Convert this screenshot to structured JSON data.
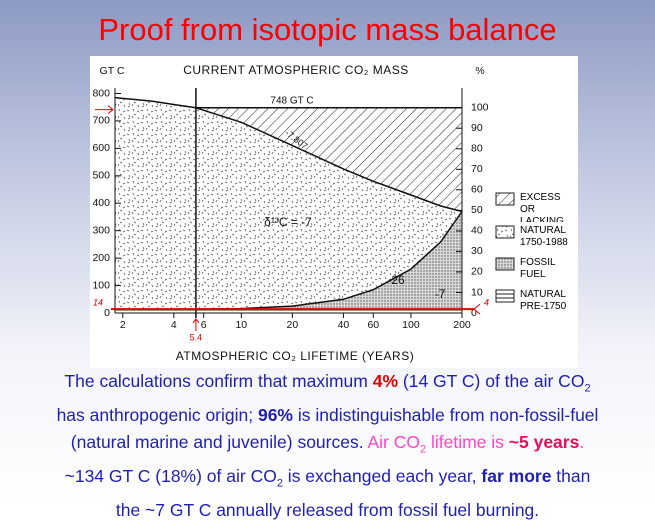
{
  "title": "Proof from isotopic mass balance",
  "chart_data": {
    "type": "area",
    "title": "CURRENT ATMOSPHERIC CO₂ MASS",
    "y_label": "GT C",
    "y2_label": "%",
    "x_label": "ATMOSPHERIC CO₂ LIFETIME (YEARS)",
    "log_x": true,
    "xlim": [
      1.8,
      200
    ],
    "xticks": [
      2,
      4,
      6,
      10,
      20,
      40,
      60,
      100,
      200
    ],
    "ylim": [
      0,
      820
    ],
    "yticks": [
      0,
      100,
      200,
      300,
      400,
      500,
      600,
      700,
      800
    ],
    "y2lim": [
      0,
      109.6
    ],
    "y2ticks": [
      0,
      10,
      20,
      30,
      40,
      50,
      60,
      70,
      80,
      90,
      100
    ],
    "curves": [
      {
        "x": [
          1.8,
          3,
          4,
          5.4,
          200
        ],
        "values": [
          785,
          772,
          760,
          748,
          748
        ]
      },
      {
        "x": [
          5.4,
          10,
          20,
          40,
          60,
          100,
          150,
          200
        ],
        "values": [
          748,
          695,
          610,
          525,
          480,
          430,
          390,
          370
        ]
      },
      {
        "x": [
          1.8,
          5.4,
          10,
          20,
          40,
          60,
          100,
          150,
          200
        ],
        "values": [
          14,
          14,
          16,
          25,
          50,
          85,
          160,
          260,
          370
        ]
      }
    ],
    "lifetime": 5.4,
    "lifetime_label": "5.4",
    "anthropogenic": 14,
    "anthropogenic_label": "14",
    "anthropogenic_pct_label": "4",
    "annotations": [
      "748 GT C",
      "-7.807",
      "δ¹³C = -7",
      "-26",
      "-7"
    ],
    "legend": [
      "EXCESS OR LACKING",
      "NATURAL 1750-1988",
      "FOSSIL FUEL",
      "NATURAL PRE-1750"
    ]
  },
  "body": [
    [
      {
        "t": "The calculations confirm that maximum "
      },
      {
        "t": "4%",
        "s": "red-bold"
      },
      {
        "t": " (14 GT C) of the air CO"
      },
      {
        "t": "2",
        "s": "sub"
      }
    ],
    [
      {
        "t": "has anthropogenic origin; "
      },
      {
        "t": "96%",
        "s": "bold"
      },
      {
        "t": " is indistinguishable from non-fossil-fuel"
      }
    ],
    [
      {
        "t": "(natural marine and juvenile) sources. "
      },
      {
        "t": "Air CO",
        "s": "pink"
      },
      {
        "t": "2",
        "s": "pink-sub"
      },
      {
        "t": " lifetime is ",
        "s": "pink"
      },
      {
        "t": "~5 years",
        "s": "pink-bold"
      },
      {
        "t": ".",
        "s": "pink"
      }
    ],
    [
      {
        "t": "~134 GT C (18%) of air CO"
      },
      {
        "t": "2",
        "s": "sub"
      },
      {
        "t": " is exchanged each year, "
      },
      {
        "t": "far more",
        "s": "bold"
      },
      {
        "t": " than"
      }
    ],
    [
      {
        "t": "the ~7 GT C annually released from fossil fuel burning."
      }
    ]
  ]
}
